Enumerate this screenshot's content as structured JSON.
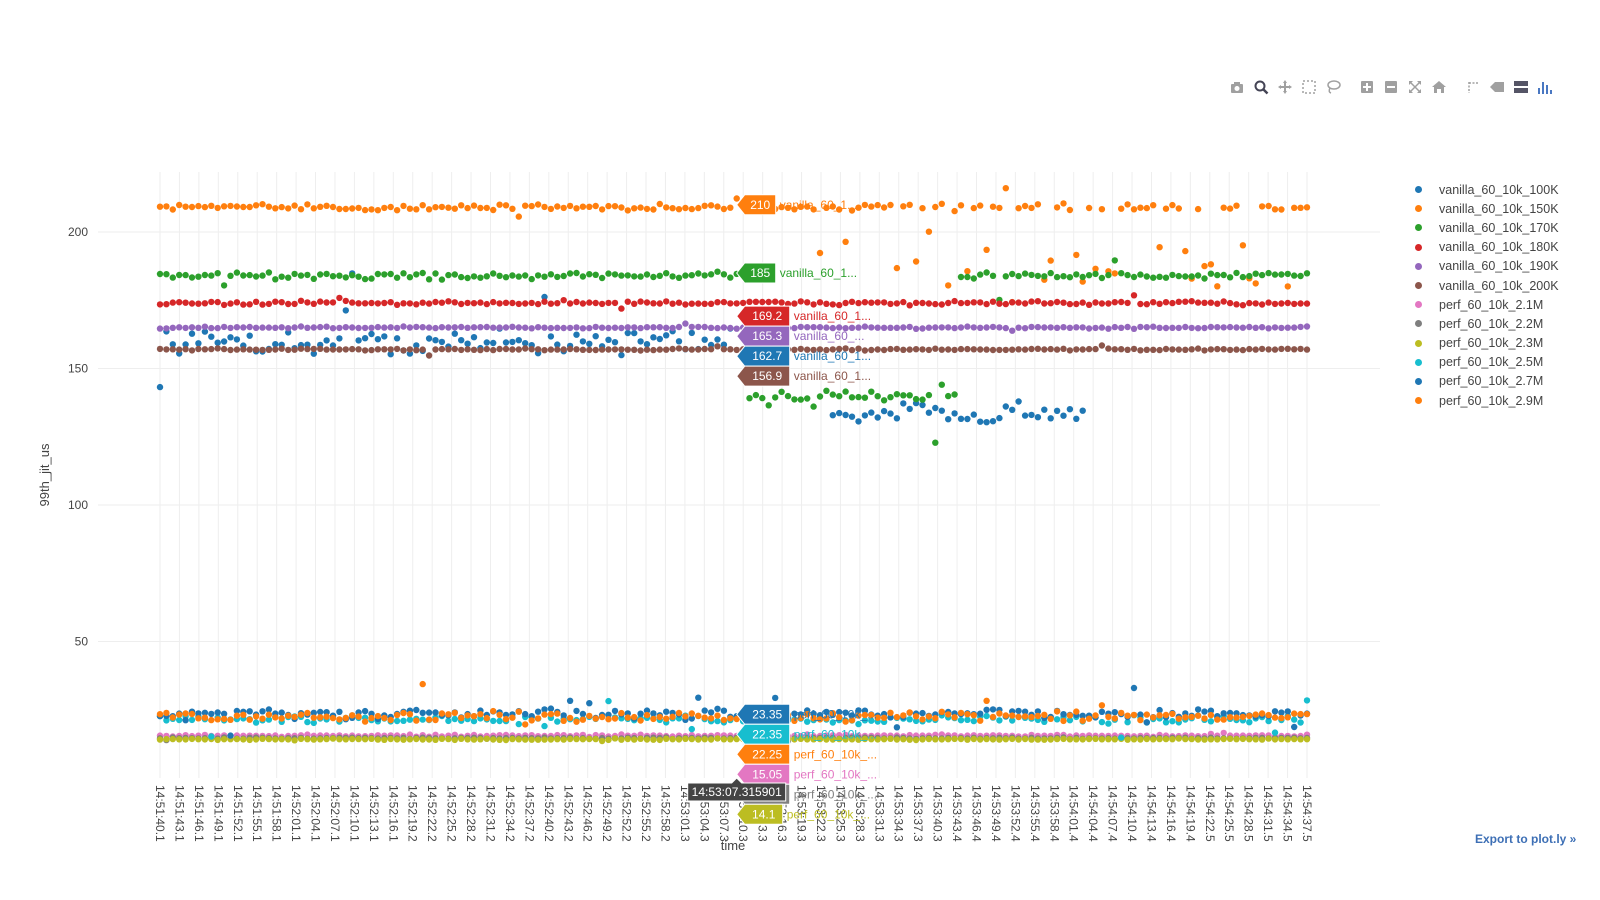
{
  "modebar": {
    "icons": [
      "camera-icon",
      "zoom-icon",
      "pan-icon",
      "box-select-icon",
      "lasso-select-icon",
      "zoom-in-icon",
      "zoom-out-icon",
      "autoscale-icon",
      "reset-axes-icon",
      "toggle-spikelines-icon",
      "hover-closest-icon",
      "hover-compare-icon",
      "plotly-logo-icon"
    ]
  },
  "export_label": "Export to plot.ly »",
  "chart_data": {
    "type": "scatter",
    "xlabel": "time",
    "ylabel": "99th_jit_us",
    "ylim": [
      0,
      222
    ],
    "yticks": [
      50,
      100,
      150,
      200
    ],
    "grid": true,
    "legend_position": "right",
    "x_tick_labels": [
      "14:51:40.1",
      "14:51:43.1",
      "14:51:46.1",
      "14:51:49.1",
      "14:51:52.1",
      "14:51:55.1",
      "14:51:58.1",
      "14:52:01.1",
      "14:52:04.1",
      "14:52:07.1",
      "14:52:10.1",
      "14:52:13.1",
      "14:52:16.1",
      "14:52:19.2",
      "14:52:22.2",
      "14:52:25.2",
      "14:52:28.2",
      "14:52:31.2",
      "14:52:34.2",
      "14:52:37.2",
      "14:52:40.2",
      "14:52:43.2",
      "14:52:46.2",
      "14:52:49.2",
      "14:52:52.2",
      "14:52:55.2",
      "14:52:58.2",
      "14:53:01.3",
      "14:53:04.3",
      "14:53:07.3",
      "14:53:10.3",
      "14:53:13.3",
      "14:53:16.3",
      "14:53:19.3",
      "14:53:22.3",
      "14:53:25.3",
      "14:53:28.3",
      "14:53:31.3",
      "14:53:34.3",
      "14:53:37.3",
      "14:53:40.3",
      "14:53:43.4",
      "14:53:46.4",
      "14:53:49.4",
      "14:53:52.4",
      "14:53:55.4",
      "14:53:58.4",
      "14:54:01.4",
      "14:54:04.4",
      "14:54:07.4",
      "14:54:10.4",
      "14:54:13.4",
      "14:54:16.4",
      "14:54:19.4",
      "14:54:22.5",
      "14:54:25.5",
      "14:54:28.5",
      "14:54:31.5",
      "14:54:34.5",
      "14:54:37.5"
    ],
    "n_points": 180,
    "series": [
      {
        "name": "vanilla_60_10k_100K",
        "color": "#1f77b4",
        "base": 160,
        "noise": 5,
        "segments": [
          {
            "from": 0,
            "to": 90,
            "mean": 160,
            "noise": 4
          },
          {
            "from": 105,
            "to": 145,
            "mean": 134,
            "noise": 3
          }
        ]
      },
      {
        "name": "vanilla_60_10k_150K",
        "color": "#ff7f0e",
        "base": 209,
        "noise": 1,
        "segments": [
          {
            "from": 0,
            "to": 180,
            "mean": 209,
            "noise": 1,
            "extra": [
              188,
              186,
              193,
              198,
              204,
              180,
              177,
              183,
              190,
              185
            ]
          }
        ]
      },
      {
        "name": "vanilla_60_10k_170K",
        "color": "#2ca02c",
        "base": 184,
        "noise": 1,
        "segments": [
          {
            "from": 0,
            "to": 92,
            "mean": 184,
            "noise": 1
          },
          {
            "from": 92,
            "to": 125,
            "mean": 140,
            "noise": 3
          },
          {
            "from": 125,
            "to": 180,
            "mean": 184,
            "noise": 1
          }
        ]
      },
      {
        "name": "vanilla_60_10k_180K",
        "color": "#d62728",
        "base": 174,
        "noise": 0.6
      },
      {
        "name": "vanilla_60_10k_190K",
        "color": "#9467bd",
        "base": 165,
        "noise": 0.3
      },
      {
        "name": "vanilla_60_10k_200K",
        "color": "#8c564b",
        "base": 157,
        "noise": 0.3
      },
      {
        "name": "perf_60_10k_2.1M",
        "color": "#e377c2",
        "base": 15.5,
        "noise": 0.3
      },
      {
        "name": "perf_60_10k_2.2M",
        "color": "#7f7f7f",
        "base": 14.6,
        "noise": 0.2
      },
      {
        "name": "perf_60_10k_2.3M",
        "color": "#bcbd22",
        "base": 14.2,
        "noise": 0.2
      },
      {
        "name": "perf_60_10k_2.5M",
        "color": "#17becf",
        "base": 21.5,
        "noise": 1.2
      },
      {
        "name": "perf_60_10k_2.7M",
        "color": "#1f77b4",
        "base": 23.5,
        "noise": 1.5
      },
      {
        "name": "perf_60_10k_2.9M",
        "color": "#ff7f0e",
        "base": 22.5,
        "noise": 1.4
      }
    ],
    "hover": {
      "x_label": "14:53:07.315901",
      "x_index": 90,
      "labels": [
        {
          "value": "210",
          "y": 210,
          "text": "vanilla_60_1...",
          "color": "#ff7f0e",
          "side": "left"
        },
        {
          "value": "185",
          "y": 185,
          "text": "vanilla_60_1...",
          "color": "#2ca02c",
          "side": "right"
        },
        {
          "value": "169.2",
          "y": 169.2,
          "text": "vanilla_60_1...",
          "color": "#d62728",
          "side": "right"
        },
        {
          "value": "165.3",
          "y": 165.3,
          "text": "vanilla_60_...",
          "color": "#9467bd",
          "side": "right"
        },
        {
          "value": "162.7",
          "y": 162.7,
          "text": "vanilla_60_1...",
          "color": "#1f77b4",
          "side": "right"
        },
        {
          "value": "156.9",
          "y": 156.9,
          "text": "vanilla_60_1...",
          "color": "#8c564b",
          "side": "right"
        },
        {
          "value": "23.35",
          "y": 23.35,
          "text": "perf_60_10k_...",
          "color": "#1f77b4",
          "side": "right"
        },
        {
          "value": "22.35",
          "y": 22.35,
          "text": "perf_60_10k_...",
          "color": "#17becf",
          "side": "right"
        },
        {
          "value": "22.25",
          "y": 22.25,
          "text": "perf_60_10k_...",
          "color": "#ff7f0e",
          "side": "right"
        },
        {
          "value": "15.05",
          "y": 15.05,
          "text": "perf_60_10k_...",
          "color": "#e377c2",
          "side": "right"
        },
        {
          "value": "14.55",
          "y": 14.55,
          "text": "perf_60_10k_...",
          "color": "#7f7f7f",
          "side": "right"
        },
        {
          "value": "14.1",
          "y": 14.1,
          "text": "perf_60_10k_...",
          "color": "#bcbd22",
          "side": "right"
        }
      ]
    }
  }
}
